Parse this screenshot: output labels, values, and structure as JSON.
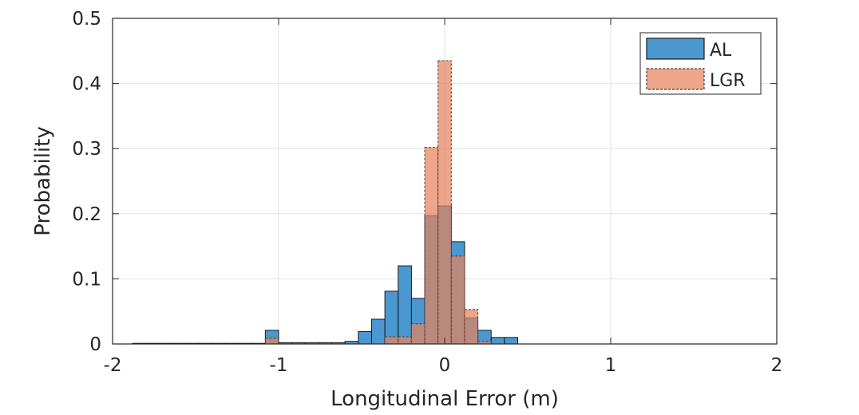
{
  "chart_data": {
    "type": "bar",
    "title": "",
    "xlabel": "Longitudinal Error (m)",
    "ylabel": "Probability",
    "xlim": [
      -2,
      2
    ],
    "ylim": [
      0,
      0.5
    ],
    "xticks": [
      "-2",
      "-1",
      "0",
      "1",
      "2"
    ],
    "yticks": [
      "0",
      "0.1",
      "0.2",
      "0.3",
      "0.4",
      "0.5"
    ],
    "grid": true,
    "legend_position": "top-right",
    "bin_width": 0.08,
    "series": [
      {
        "name": "AL",
        "color": "#4a98cf",
        "edge_color": "#1a1a1a",
        "edge_style": "solid",
        "bins": [
          {
            "x0": -1.88,
            "x1": -1.8,
            "value": 0.001
          },
          {
            "x0": -1.8,
            "x1": -1.72,
            "value": 0.001
          },
          {
            "x0": -1.72,
            "x1": -1.64,
            "value": 0.001
          },
          {
            "x0": -1.64,
            "x1": -1.56,
            "value": 0.001
          },
          {
            "x0": -1.56,
            "x1": -1.48,
            "value": 0.001
          },
          {
            "x0": -1.48,
            "x1": -1.4,
            "value": 0.001
          },
          {
            "x0": -1.4,
            "x1": -1.32,
            "value": 0.001
          },
          {
            "x0": -1.32,
            "x1": -1.24,
            "value": 0.001
          },
          {
            "x0": -1.24,
            "x1": -1.16,
            "value": 0.001
          },
          {
            "x0": -1.16,
            "x1": -1.08,
            "value": 0.001
          },
          {
            "x0": -1.08,
            "x1": -1.0,
            "value": 0.021
          },
          {
            "x0": -1.0,
            "x1": -0.92,
            "value": 0.002
          },
          {
            "x0": -0.92,
            "x1": -0.84,
            "value": 0.002
          },
          {
            "x0": -0.84,
            "x1": -0.76,
            "value": 0.002
          },
          {
            "x0": -0.76,
            "x1": -0.68,
            "value": 0.002
          },
          {
            "x0": -0.68,
            "x1": -0.6,
            "value": 0.002
          },
          {
            "x0": -0.6,
            "x1": -0.52,
            "value": 0.004
          },
          {
            "x0": -0.52,
            "x1": -0.44,
            "value": 0.019
          },
          {
            "x0": -0.44,
            "x1": -0.36,
            "value": 0.038
          },
          {
            "x0": -0.36,
            "x1": -0.28,
            "value": 0.081
          },
          {
            "x0": -0.28,
            "x1": -0.2,
            "value": 0.12
          },
          {
            "x0": -0.2,
            "x1": -0.12,
            "value": 0.07
          },
          {
            "x0": -0.12,
            "x1": -0.04,
            "value": 0.197
          },
          {
            "x0": -0.04,
            "x1": 0.04,
            "value": 0.212
          },
          {
            "x0": 0.04,
            "x1": 0.12,
            "value": 0.157
          },
          {
            "x0": 0.12,
            "x1": 0.2,
            "value": 0.04
          },
          {
            "x0": 0.2,
            "x1": 0.28,
            "value": 0.021
          },
          {
            "x0": 0.28,
            "x1": 0.36,
            "value": 0.01
          },
          {
            "x0": 0.36,
            "x1": 0.44,
            "value": 0.01
          }
        ]
      },
      {
        "name": "LGR",
        "color": "#e6845e",
        "edge_color": "#5a3a30",
        "edge_style": "dashed",
        "bins": [
          {
            "x0": -1.08,
            "x1": -1.0,
            "value": 0.009
          },
          {
            "x0": -0.36,
            "x1": -0.28,
            "value": 0.011
          },
          {
            "x0": -0.28,
            "x1": -0.2,
            "value": 0.011
          },
          {
            "x0": -0.2,
            "x1": -0.12,
            "value": 0.031
          },
          {
            "x0": -0.12,
            "x1": -0.04,
            "value": 0.302
          },
          {
            "x0": -0.04,
            "x1": 0.04,
            "value": 0.435
          },
          {
            "x0": 0.04,
            "x1": 0.12,
            "value": 0.135
          },
          {
            "x0": 0.12,
            "x1": 0.2,
            "value": 0.053
          },
          {
            "x0": 0.2,
            "x1": 0.28,
            "value": 0.004
          }
        ]
      }
    ]
  }
}
